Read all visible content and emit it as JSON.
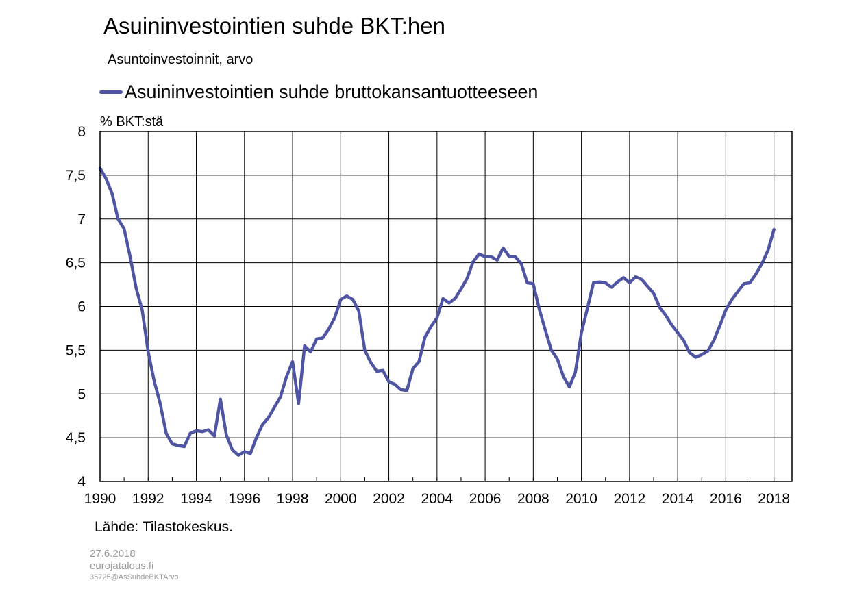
{
  "title": "Asuininvestointien suhde BKT:hen",
  "subtitle": "Asuntoinvestoinnit, arvo",
  "footer": {
    "source": "Lähde: Tilastokeskus.",
    "date": "27.6.2018",
    "site": "eurojatalous.fi",
    "code": "35725@AsSuhdeBKTArvo"
  },
  "chart_data": {
    "type": "line",
    "ylabel": "% BKT:stä",
    "xlim": [
      1990,
      2018.75
    ],
    "ylim": [
      4,
      8
    ],
    "y_ticks": [
      4,
      4.5,
      5,
      5.5,
      6,
      6.5,
      7,
      7.5,
      8
    ],
    "y_tick_labels": [
      "4",
      "4,5",
      "5",
      "5,5",
      "6",
      "6,5",
      "7",
      "7,5",
      "8"
    ],
    "x_ticks": [
      1990,
      1992,
      1994,
      1996,
      1998,
      2000,
      2002,
      2004,
      2006,
      2008,
      2010,
      2012,
      2014,
      2016,
      2018
    ],
    "x_tick_labels": [
      "1990",
      "1992",
      "1994",
      "1996",
      "1998",
      "2000",
      "2002",
      "2004",
      "2006",
      "2008",
      "2010",
      "2012",
      "2014",
      "2016",
      "2018"
    ],
    "grid": true,
    "legend_position": "top-left",
    "series": [
      {
        "name": "Asuininvestointien suhde bruttokansantuotteeseen",
        "color": "#4f55a3",
        "x": [
          1990.0,
          1990.25,
          1990.5,
          1990.75,
          1991.0,
          1991.25,
          1991.5,
          1991.75,
          1992.0,
          1992.25,
          1992.5,
          1992.75,
          1993.0,
          1993.25,
          1993.5,
          1993.75,
          1994.0,
          1994.25,
          1994.5,
          1994.75,
          1995.0,
          1995.25,
          1995.5,
          1995.75,
          1996.0,
          1996.25,
          1996.5,
          1996.75,
          1997.0,
          1997.25,
          1997.5,
          1997.75,
          1998.0,
          1998.25,
          1998.5,
          1998.75,
          1999.0,
          1999.25,
          1999.5,
          1999.75,
          2000.0,
          2000.25,
          2000.5,
          2000.75,
          2001.0,
          2001.25,
          2001.5,
          2001.75,
          2002.0,
          2002.25,
          2002.5,
          2002.75,
          2003.0,
          2003.25,
          2003.5,
          2003.75,
          2004.0,
          2004.25,
          2004.5,
          2004.75,
          2005.0,
          2005.25,
          2005.5,
          2005.75,
          2006.0,
          2006.25,
          2006.5,
          2006.75,
          2007.0,
          2007.25,
          2007.5,
          2007.75,
          2008.0,
          2008.25,
          2008.5,
          2008.75,
          2009.0,
          2009.25,
          2009.5,
          2009.75,
          2010.0,
          2010.25,
          2010.5,
          2010.75,
          2011.0,
          2011.25,
          2011.5,
          2011.75,
          2012.0,
          2012.25,
          2012.5,
          2012.75,
          2013.0,
          2013.25,
          2013.5,
          2013.75,
          2014.0,
          2014.25,
          2014.5,
          2014.75,
          2015.0,
          2015.25,
          2015.5,
          2015.75,
          2016.0,
          2016.25,
          2016.5,
          2016.75,
          2017.0,
          2017.25,
          2017.5,
          2017.75,
          2018.0
        ],
        "values": [
          7.58,
          7.46,
          7.29,
          7.0,
          6.89,
          6.57,
          6.21,
          5.96,
          5.48,
          5.15,
          4.89,
          4.55,
          4.43,
          4.41,
          4.4,
          4.55,
          4.58,
          4.57,
          4.59,
          4.52,
          4.94,
          4.53,
          4.36,
          4.3,
          4.34,
          4.32,
          4.5,
          4.65,
          4.73,
          4.85,
          4.97,
          5.2,
          5.37,
          4.89,
          5.55,
          5.48,
          5.63,
          5.64,
          5.74,
          5.87,
          6.08,
          6.12,
          6.08,
          5.95,
          5.5,
          5.36,
          5.26,
          5.27,
          5.14,
          5.11,
          5.05,
          5.04,
          5.29,
          5.37,
          5.65,
          5.77,
          5.87,
          6.09,
          6.04,
          6.09,
          6.2,
          6.32,
          6.51,
          6.6,
          6.57,
          6.57,
          6.53,
          6.67,
          6.57,
          6.57,
          6.49,
          6.27,
          6.26,
          5.97,
          5.73,
          5.5,
          5.4,
          5.2,
          5.08,
          5.25,
          5.7,
          5.98,
          6.27,
          6.28,
          6.27,
          6.22,
          6.28,
          6.33,
          6.27,
          6.34,
          6.31,
          6.23,
          6.15,
          5.99,
          5.9,
          5.79,
          5.7,
          5.61,
          5.47,
          5.42,
          5.45,
          5.49,
          5.61,
          5.78,
          5.96,
          6.08,
          6.17,
          6.26,
          6.27,
          6.37,
          6.49,
          6.64,
          6.88
        ]
      }
    ]
  }
}
